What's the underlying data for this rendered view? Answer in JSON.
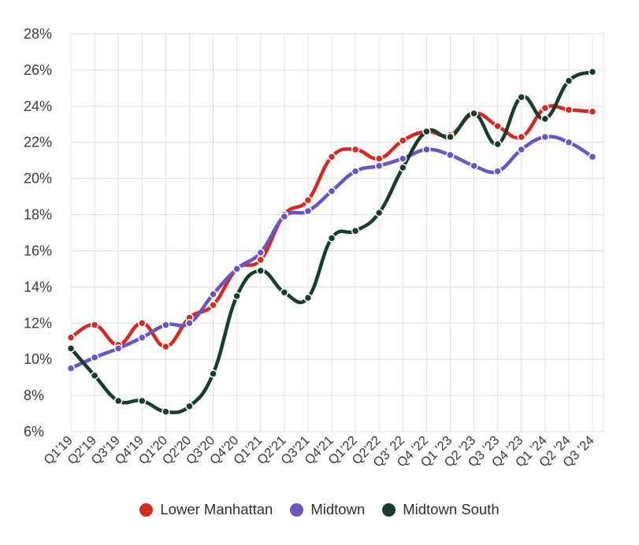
{
  "chart_data": {
    "type": "line",
    "title": "",
    "xlabel": "",
    "ylabel": "",
    "categories": [
      "Q1'19",
      "Q2'19",
      "Q3'19",
      "Q4'19",
      "Q1'20",
      "Q2'20",
      "Q3'20",
      "Q4'20",
      "Q1'21",
      "Q2'21",
      "Q3'21",
      "Q4'21",
      "Q1'22",
      "Q2'22",
      "Q3' 22",
      "Q4 '22",
      "Q1 '23",
      "Q2 '23",
      "Q3 '23",
      "Q4 '23",
      "Q1 '24",
      "Q2 '24",
      "Q3 '24"
    ],
    "ylim": [
      6,
      28
    ],
    "yticks": [
      6,
      8,
      10,
      12,
      14,
      16,
      18,
      20,
      22,
      24,
      26,
      28
    ],
    "ytick_labels": [
      "6%",
      "8%",
      "10%",
      "12%",
      "14%",
      "16%",
      "18%",
      "20%",
      "22%",
      "24%",
      "26%",
      "28%"
    ],
    "grid": true,
    "legend_position": "bottom",
    "series": [
      {
        "name": "Lower Manhattan",
        "color": "#d42a20",
        "values": [
          11.2,
          11.9,
          10.8,
          12.0,
          10.7,
          12.3,
          13.0,
          15.0,
          15.5,
          18.0,
          18.8,
          21.2,
          21.6,
          21.1,
          22.1,
          22.6,
          22.4,
          23.6,
          22.9,
          22.3,
          23.9,
          23.8,
          23.7
        ]
      },
      {
        "name": "Midtown",
        "color": "#6b54c6",
        "values": [
          9.5,
          10.1,
          10.6,
          11.2,
          11.9,
          12.0,
          13.6,
          15.0,
          15.9,
          17.9,
          18.2,
          19.3,
          20.4,
          20.7,
          21.1,
          21.6,
          21.3,
          20.7,
          20.4,
          21.6,
          22.3,
          22.0,
          21.2
        ]
      },
      {
        "name": "Midtown South",
        "color": "#173d2c",
        "values": [
          10.6,
          9.1,
          7.7,
          7.7,
          7.1,
          7.4,
          9.2,
          13.5,
          14.9,
          13.7,
          13.4,
          16.7,
          17.1,
          18.1,
          20.6,
          22.6,
          22.3,
          23.6,
          21.9,
          24.5,
          23.3,
          25.4,
          25.9
        ]
      }
    ]
  }
}
